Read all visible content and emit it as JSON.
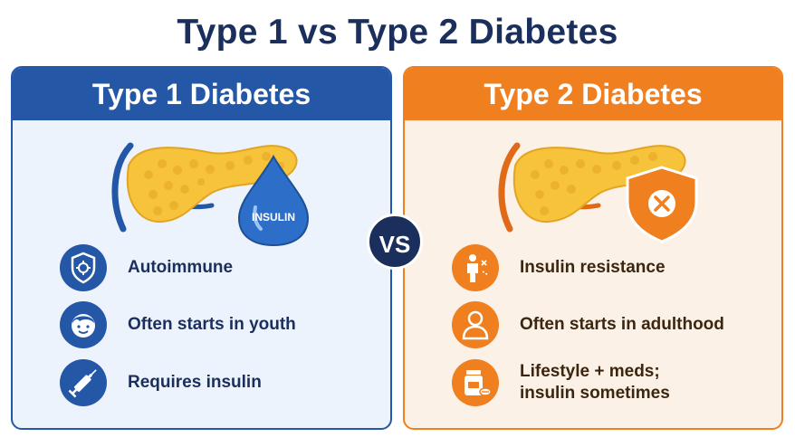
{
  "title": "Type 1 vs Type 2 Diabetes",
  "vs_label": "VS",
  "colors": {
    "type1_blue": "#2457a6",
    "type2_orange": "#ef7f1f",
    "title_navy": "#1b2f5c",
    "pancreas_yellow": "#f6c33a"
  },
  "type1": {
    "header": "Type 1 Diabetes",
    "badge": "INSULIN",
    "items": [
      {
        "icon": "shield-virus-icon",
        "label": "Autoimmune"
      },
      {
        "icon": "child-face-icon",
        "label": "Often starts in youth"
      },
      {
        "icon": "syringe-icon",
        "label": "Requires insulin"
      }
    ]
  },
  "type2": {
    "header": "Type 2 Diabetes",
    "items": [
      {
        "icon": "person-resistance-icon",
        "label": "Insulin resistance"
      },
      {
        "icon": "adult-person-icon",
        "label": "Often starts in adulthood"
      },
      {
        "icon": "pill-bottle-icon",
        "label_line1": "Lifestyle + meds;",
        "label_line2": "insulin sometimes"
      }
    ]
  }
}
